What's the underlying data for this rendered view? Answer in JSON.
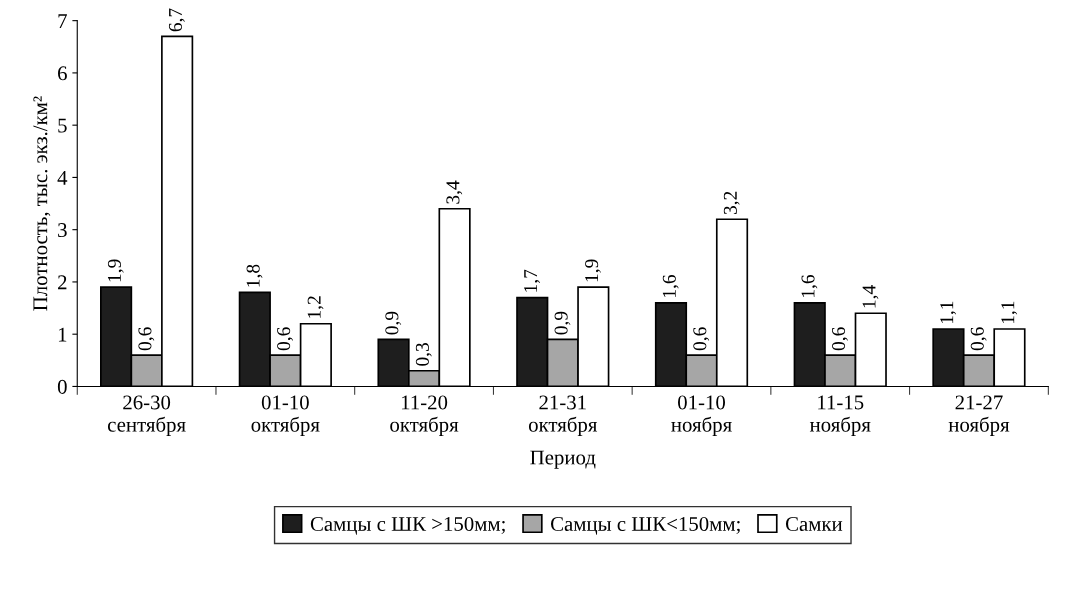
{
  "chart_data": {
    "type": "bar",
    "xlabel": "Период",
    "ylabel": "Плотность, тыс. экз./км²",
    "categories": [
      "26-30\nсентября",
      "01-10\nоктября",
      "11-20\nоктября",
      "21-31\nоктября",
      "01-10\nноября",
      "11-15\nноября",
      "21-27\nноября"
    ],
    "series": [
      {
        "name": "Самцы с ШК >150мм;",
        "color": "#1e1e1e",
        "values": [
          1.9,
          1.8,
          0.9,
          1.7,
          1.6,
          1.6,
          1.1
        ],
        "value_labels": [
          "1,9",
          "1,8",
          "0,9",
          "1,7",
          "1,6",
          "1,6",
          "1,1"
        ]
      },
      {
        "name": "Самцы с ШК<150мм;",
        "color": "#a6a6a6",
        "values": [
          0.6,
          0.6,
          0.3,
          0.9,
          0.6,
          0.6,
          0.6
        ],
        "value_labels": [
          "0,6",
          "0,6",
          "0,3",
          "0,9",
          "0,6",
          "0,6",
          "0,6"
        ]
      },
      {
        "name": "Самки",
        "color": "#ffffff",
        "values": [
          6.7,
          1.2,
          3.4,
          1.9,
          3.2,
          1.4,
          1.1
        ],
        "value_labels": [
          "6,7",
          "1,2",
          "3,4",
          "1,9",
          "3,2",
          "1,4",
          "1,1"
        ]
      }
    ],
    "ylim": [
      0,
      7
    ],
    "yticks": [
      0,
      1,
      2,
      3,
      4,
      5,
      6,
      7
    ],
    "grid": false,
    "legend": "bottom"
  }
}
